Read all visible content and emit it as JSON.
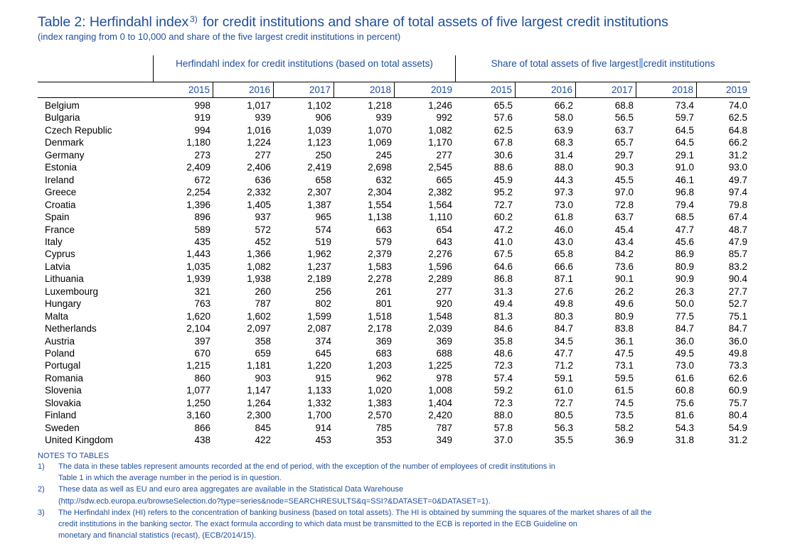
{
  "title": {
    "main": "Table 2: Herfindahl index",
    "sup": "3)",
    "rest": "for credit institutions and share of total assets of five largest credit institutions",
    "subtitle": "(index ranging from 0 to 10,000 and share of the five largest credit institutions in percent)"
  },
  "groups": {
    "hi_label": "Herfindahl index for credit institutions (based on total assets)",
    "share_label_a": "Share of total assets of five largest",
    "share_label_b": "credit institutions"
  },
  "years": [
    "2015",
    "2016",
    "2017",
    "2018",
    "2019",
    "2015",
    "2016",
    "2017",
    "2018",
    "2019"
  ],
  "rows": [
    {
      "country": "Belgium",
      "values": [
        "998",
        "1,017",
        "1,102",
        "1,218",
        "1,246",
        "65.5",
        "66.2",
        "68.8",
        "73.4",
        "74.0"
      ]
    },
    {
      "country": "Bulgaria",
      "values": [
        "919",
        "939",
        "906",
        "939",
        "992",
        "57.6",
        "58.0",
        "56.5",
        "59.7",
        "62.5"
      ]
    },
    {
      "country": "Czech Republic",
      "values": [
        "994",
        "1,016",
        "1,039",
        "1,070",
        "1,082",
        "62.5",
        "63.9",
        "63.7",
        "64.5",
        "64.8"
      ]
    },
    {
      "country": "Denmark",
      "values": [
        "1,180",
        "1,224",
        "1,123",
        "1,069",
        "1,170",
        "67.8",
        "68.3",
        "65.7",
        "64.5",
        "66.2"
      ]
    },
    {
      "country": "Germany",
      "values": [
        "273",
        "277",
        "250",
        "245",
        "277",
        "30.6",
        "31.4",
        "29.7",
        "29.1",
        "31.2"
      ]
    },
    {
      "country": "Estonia",
      "values": [
        "2,409",
        "2,406",
        "2,419",
        "2,698",
        "2,545",
        "88.6",
        "88.0",
        "90.3",
        "91.0",
        "93.0"
      ]
    },
    {
      "country": "Ireland",
      "values": [
        "672",
        "636",
        "658",
        "632",
        "665",
        "45.9",
        "44.3",
        "45.5",
        "46.1",
        "49.7"
      ]
    },
    {
      "country": "Greece",
      "values": [
        "2,254",
        "2,332",
        "2,307",
        "2,304",
        "2,382",
        "95.2",
        "97.3",
        "97.0",
        "96.8",
        "97.4"
      ]
    },
    {
      "country": "Croatia",
      "values": [
        "1,396",
        "1,405",
        "1,387",
        "1,554",
        "1,564",
        "72.7",
        "73.0",
        "72.8",
        "79.4",
        "79.8"
      ]
    },
    {
      "country": "Spain",
      "values": [
        "896",
        "937",
        "965",
        "1,138",
        "1,110",
        "60.2",
        "61.8",
        "63.7",
        "68.5",
        "67.4"
      ]
    },
    {
      "country": "France",
      "values": [
        "589",
        "572",
        "574",
        "663",
        "654",
        "47.2",
        "46.0",
        "45.4",
        "47.7",
        "48.7"
      ]
    },
    {
      "country": "Italy",
      "values": [
        "435",
        "452",
        "519",
        "579",
        "643",
        "41.0",
        "43.0",
        "43.4",
        "45.6",
        "47.9"
      ]
    },
    {
      "country": "Cyprus",
      "values": [
        "1,443",
        "1,366",
        "1,962",
        "2,379",
        "2,276",
        "67.5",
        "65.8",
        "84.2",
        "86.9",
        "85.7"
      ]
    },
    {
      "country": "Latvia",
      "values": [
        "1,035",
        "1,082",
        "1,237",
        "1,583",
        "1,596",
        "64.6",
        "66.6",
        "73.6",
        "80.9",
        "83.2"
      ]
    },
    {
      "country": "Lithuania",
      "values": [
        "1,939",
        "1,938",
        "2,189",
        "2,278",
        "2,289",
        "86.8",
        "87.1",
        "90.1",
        "90.9",
        "90.4"
      ]
    },
    {
      "country": "Luxembourg",
      "values": [
        "321",
        "260",
        "256",
        "261",
        "277",
        "31.3",
        "27.6",
        "26.2",
        "26.3",
        "27.7"
      ]
    },
    {
      "country": "Hungary",
      "values": [
        "763",
        "787",
        "802",
        "801",
        "920",
        "49.4",
        "49.8",
        "49.6",
        "50.0",
        "52.7"
      ]
    },
    {
      "country": "Malta",
      "values": [
        "1,620",
        "1,602",
        "1,599",
        "1,518",
        "1,548",
        "81.3",
        "80.3",
        "80.9",
        "77.5",
        "75.1"
      ]
    },
    {
      "country": "Netherlands",
      "values": [
        "2,104",
        "2,097",
        "2,087",
        "2,178",
        "2,039",
        "84.6",
        "84.7",
        "83.8",
        "84.7",
        "84.7"
      ]
    },
    {
      "country": "Austria",
      "values": [
        "397",
        "358",
        "374",
        "369",
        "369",
        "35.8",
        "34.5",
        "36.1",
        "36.0",
        "36.0"
      ]
    },
    {
      "country": "Poland",
      "values": [
        "670",
        "659",
        "645",
        "683",
        "688",
        "48.6",
        "47.7",
        "47.5",
        "49.5",
        "49.8"
      ]
    },
    {
      "country": "Portugal",
      "values": [
        "1,215",
        "1,181",
        "1,220",
        "1,203",
        "1,225",
        "72.3",
        "71.2",
        "73.1",
        "73.0",
        "73.3"
      ]
    },
    {
      "country": "Romania",
      "values": [
        "860",
        "903",
        "915",
        "962",
        "978",
        "57.4",
        "59.1",
        "59.5",
        "61.6",
        "62.6"
      ]
    },
    {
      "country": "Slovenia",
      "values": [
        "1,077",
        "1,147",
        "1,133",
        "1,020",
        "1,008",
        "59.2",
        "61.0",
        "61.5",
        "60.8",
        "60.9"
      ]
    },
    {
      "country": "Slovakia",
      "values": [
        "1,250",
        "1,264",
        "1,332",
        "1,383",
        "1,404",
        "72.3",
        "72.7",
        "74.5",
        "75.6",
        "75.7"
      ]
    },
    {
      "country": "Finland",
      "values": [
        "3,160",
        "2,300",
        "1,700",
        "2,570",
        "2,420",
        "88.0",
        "80.5",
        "73.5",
        "81.6",
        "80.4"
      ]
    },
    {
      "country": "Sweden",
      "values": [
        "866",
        "845",
        "914",
        "785",
        "787",
        "57.8",
        "56.3",
        "58.2",
        "54.3",
        "54.9"
      ]
    },
    {
      "country": "United Kingdom",
      "values": [
        "438",
        "422",
        "453",
        "353",
        "349",
        "37.0",
        "35.5",
        "36.9",
        "31.8",
        "31.2"
      ]
    }
  ],
  "notes": {
    "heading": "NOTES TO TABLES",
    "items": [
      {
        "num": "1)",
        "line1": "The data in these tables represent amounts recorded at the end of period, with the exception of the number of employees of credit institutions in",
        "line2": "Table 1 in which the average number in the period is in question."
      },
      {
        "num": "2)",
        "line1": "These data as well as EU and euro area aggregates are available in the Statistical Data Warehouse",
        "line2": "(http://sdw.ecb.europa.eu/browseSelection.do?type=series&node=SEARCHRESULTS&q=SSI?&DATASET=0&DATASET=1)."
      },
      {
        "num": "3)",
        "line1": "The Herfindahl index (HI) refers to the concentration of banking business (based on total assets). The HI is obtained by summing the squares of the market shares of all the",
        "line2": "credit institutions in the banking sector. The exact formula according to which data must be transmitted to the ECB is reported in the ECB Guideline on",
        "line3": "monetary and financial statistics (recast), (ECB/2014/15)."
      }
    ]
  }
}
